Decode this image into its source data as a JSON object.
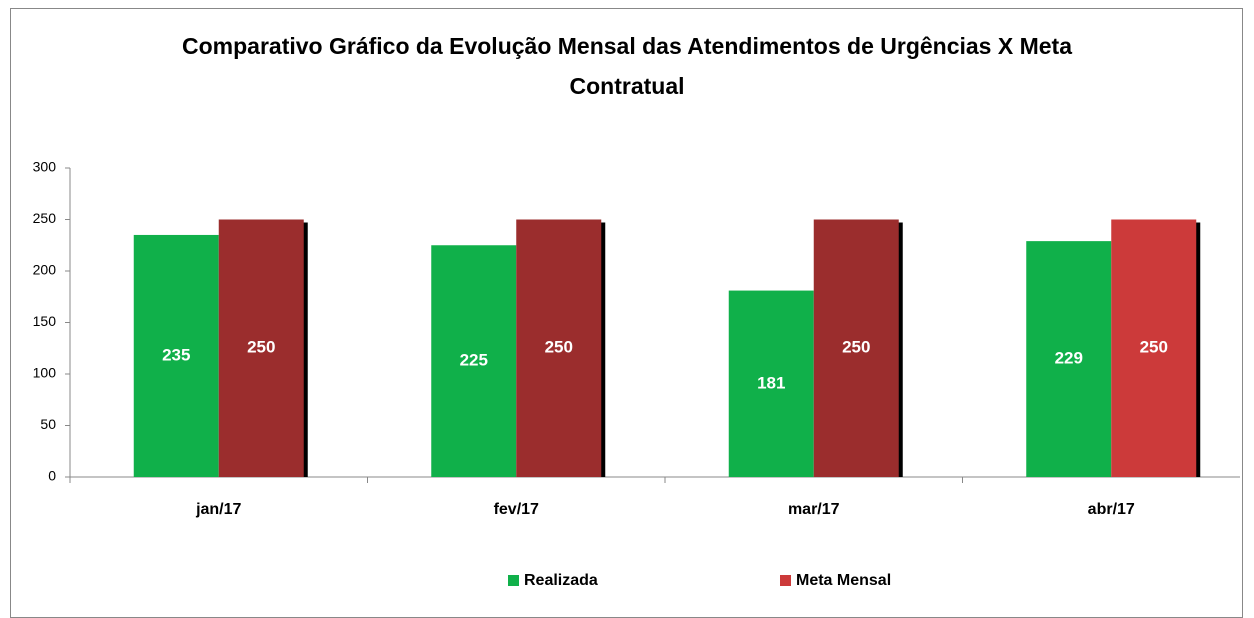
{
  "chart_data": {
    "type": "bar",
    "title": "Comparativo Gráfico da Evolução Mensal das Atendimentos de Urgências X Meta Contratual",
    "categories": [
      "jan/17",
      "fev/17",
      "mar/17",
      "abr/17"
    ],
    "series": [
      {
        "name": "Realizada",
        "color": "#10b04a",
        "values": [
          235,
          225,
          181,
          229
        ]
      },
      {
        "name": "Meta Mensal",
        "color": "#cc3a3a",
        "colors": [
          "#9b2d2d",
          "#9b2d2d",
          "#9b2d2d",
          "#cc3a3a"
        ],
        "values": [
          250,
          250,
          250,
          250
        ]
      }
    ],
    "ylim": [
      0,
      300
    ],
    "yticks": [
      0,
      50,
      100,
      150,
      200,
      250,
      300
    ],
    "grid": false,
    "legend": "bottom"
  }
}
